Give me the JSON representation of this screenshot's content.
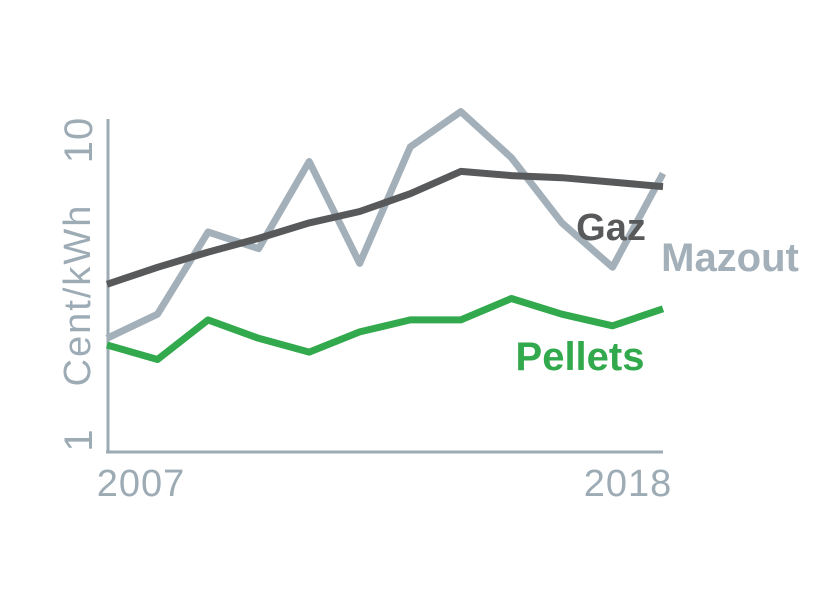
{
  "chart": {
    "y_axis": {
      "label": "Cent/kWh",
      "tick_top": "10",
      "tick_bottom": "1",
      "scale": "log"
    },
    "x_axis": {
      "tick_left": "2007",
      "tick_right": "2018"
    },
    "colors": {
      "axis": "#9dabb5",
      "gaz": "#58595b",
      "mazout": "#a3b0ba",
      "pellets": "#31a94c",
      "background": "#ffffff"
    },
    "labels": {
      "gaz": "Gaz",
      "mazout": "Mazout",
      "pellets": "Pellets"
    }
  },
  "chart_data": {
    "type": "line",
    "title": "",
    "xlabel": "",
    "ylabel": "Cent/kWh",
    "yscale": "log",
    "ylim": [
      1,
      10
    ],
    "grid": false,
    "legend": "inline-labels-right",
    "x": [
      2007,
      2008,
      2009,
      2010,
      2011,
      2012,
      2013,
      2014,
      2015,
      2016,
      2017,
      2018
    ],
    "series": [
      {
        "name": "Gaz",
        "color": "#58595b",
        "values": [
          3.2,
          3.6,
          4.0,
          4.4,
          4.9,
          5.3,
          6.0,
          7.0,
          6.8,
          6.7,
          6.5,
          6.3
        ]
      },
      {
        "name": "Mazout",
        "color": "#a3b0ba",
        "values": [
          2.2,
          2.6,
          4.6,
          4.1,
          7.5,
          3.7,
          8.3,
          10.6,
          7.7,
          4.9,
          3.6,
          6.9
        ]
      },
      {
        "name": "Pellets",
        "color": "#31a94c",
        "values": [
          2.1,
          1.9,
          2.5,
          2.2,
          2.0,
          2.3,
          2.5,
          2.5,
          2.9,
          2.6,
          2.4,
          2.7
        ]
      }
    ]
  }
}
